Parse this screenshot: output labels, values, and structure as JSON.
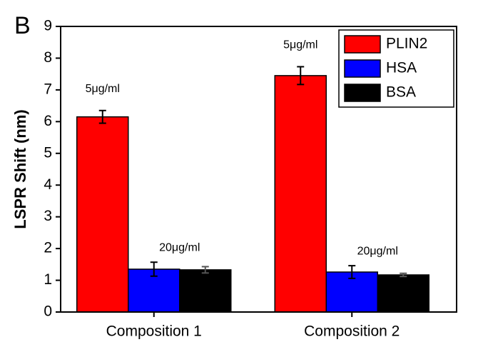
{
  "panel_label": "B",
  "chart_data": {
    "type": "bar",
    "y_label": "LSPR Shift (nm)",
    "categories": [
      "Composition 1",
      "Composition 2"
    ],
    "series": [
      {
        "name": "PLIN2",
        "color": "#ff0000",
        "values": [
          6.15,
          7.45
        ],
        "errors": [
          0.2,
          0.28
        ]
      },
      {
        "name": "HSA",
        "color": "#0000ff",
        "values": [
          1.35,
          1.26
        ],
        "errors": [
          0.22,
          0.2
        ]
      },
      {
        "name": "BSA",
        "color": "#000000",
        "values": [
          1.33,
          1.17
        ],
        "errors": [
          0.1,
          0.05
        ]
      }
    ],
    "annotations": [
      "5μg/ml",
      "20μg/ml",
      "5μg/ml",
      "20μg/ml"
    ],
    "ylim": [
      0,
      9
    ],
    "yticks": [
      0,
      1,
      2,
      3,
      4,
      5,
      6,
      7,
      8,
      9
    ],
    "legend": "top-right"
  }
}
